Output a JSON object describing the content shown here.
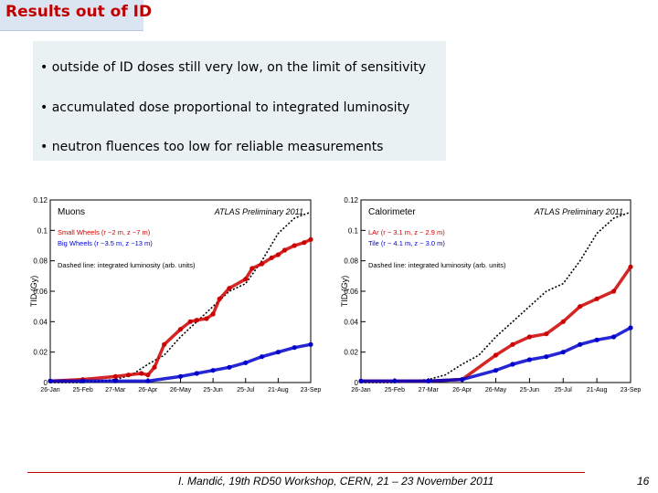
{
  "slide": {
    "title": "Results out of ID",
    "bullets": [
      "• outside of ID doses still very low, on the limit of sensitivity",
      "• accumulated dose proportional to integrated luminosity",
      "• neutron fluences too low for reliable measurements"
    ],
    "footer": "I. Mandić, 19th RD50 Workshop, CERN, 21 – 23 November 2011",
    "page_number": "16"
  },
  "chart_data": [
    {
      "type": "scatter",
      "title": "Muons",
      "subtitle": "ATLAS Preliminary  2011",
      "ylabel": "TID (Gy)",
      "ylim": [
        0,
        0.12
      ],
      "yticks": [
        "0",
        "0.02",
        "0.04",
        "0.06",
        "0.08",
        "0.1",
        "0.12"
      ],
      "xticks": [
        "26-Jan",
        "25-Feb",
        "27-Mar",
        "26-Apr",
        "26-May",
        "25-Jun",
        "25-Jul",
        "21-Aug",
        "23-Sep"
      ],
      "note": "Dashed line: integrated luminosity (arb. units)",
      "series": [
        {
          "name": "Small Wheels (r ~2 m, z ~7 m)",
          "color": "#cc0000",
          "x": [
            0,
            1,
            2,
            2.4,
            2.8,
            3,
            3.2,
            3.5,
            4,
            4.3,
            4.5,
            4.8,
            5,
            5.2,
            5.5,
            6,
            6.2,
            6.5,
            6.8,
            7,
            7.2,
            7.5,
            7.8,
            8
          ],
          "y": [
            0.001,
            0.002,
            0.004,
            0.005,
            0.006,
            0.005,
            0.01,
            0.025,
            0.035,
            0.04,
            0.041,
            0.042,
            0.045,
            0.055,
            0.062,
            0.068,
            0.075,
            0.078,
            0.082,
            0.084,
            0.087,
            0.09,
            0.092,
            0.094
          ]
        },
        {
          "name": "Big Wheels (r ~3.5 m, z ~13 m)",
          "color": "#0000cc",
          "x": [
            0,
            1,
            2,
            3,
            4,
            4.5,
            5,
            5.5,
            6,
            6.5,
            7,
            7.5,
            8
          ],
          "y": [
            0.001,
            0.001,
            0.001,
            0.001,
            0.004,
            0.006,
            0.008,
            0.01,
            0.013,
            0.017,
            0.02,
            0.023,
            0.025
          ]
        },
        {
          "name": "Dashed line: integrated luminosity (arb. units)",
          "color": "#000000",
          "x": [
            0,
            1,
            2,
            2.5,
            3,
            3.5,
            4,
            4.5,
            5,
            5.5,
            6,
            6.5,
            7,
            7.5,
            8
          ],
          "y": [
            0,
            0,
            0.002,
            0.005,
            0.012,
            0.018,
            0.03,
            0.04,
            0.05,
            0.06,
            0.065,
            0.08,
            0.098,
            0.108,
            0.112
          ]
        }
      ]
    },
    {
      "type": "scatter",
      "title": "Calorimeter",
      "subtitle": "ATLAS Preliminary  2011",
      "ylabel": "TID (Gy)",
      "ylim": [
        0,
        0.12
      ],
      "yticks": [
        "0",
        "0.02",
        "0.04",
        "0.06",
        "0.08",
        "0.1",
        "0.12"
      ],
      "xticks": [
        "26-Jan",
        "25-Feb",
        "27-Mar",
        "26-Apr",
        "26-May",
        "25-Jun",
        "25-Jul",
        "21-Aug",
        "23-Sep"
      ],
      "note": "Dashed line: integrated luminosity (arb. units)",
      "series": [
        {
          "name": "LAr (r ~ 3.1 m, z ~ 2.9 m)",
          "color": "#cc0000",
          "x": [
            0,
            1,
            2,
            3,
            4,
            4.5,
            5,
            5.5,
            6,
            6.5,
            7,
            7.5,
            8
          ],
          "y": [
            0.001,
            0.001,
            0.001,
            0.002,
            0.018,
            0.025,
            0.03,
            0.032,
            0.04,
            0.05,
            0.055,
            0.06,
            0.076
          ]
        },
        {
          "name": "Tile (r ~ 4.1 m, z ~ 3.0 m)",
          "color": "#0000cc",
          "x": [
            0,
            1,
            2,
            3,
            4,
            4.5,
            5,
            5.5,
            6,
            6.5,
            7,
            7.5,
            8
          ],
          "y": [
            0.001,
            0.001,
            0.001,
            0.002,
            0.008,
            0.012,
            0.015,
            0.017,
            0.02,
            0.025,
            0.028,
            0.03,
            0.036
          ]
        },
        {
          "name": "Dashed line: integrated luminosity (arb. units)",
          "color": "#000000",
          "x": [
            0,
            1,
            2,
            2.5,
            3,
            3.5,
            4,
            4.5,
            5,
            5.5,
            6,
            6.5,
            7,
            7.5,
            8
          ],
          "y": [
            0,
            0,
            0.002,
            0.005,
            0.012,
            0.018,
            0.03,
            0.04,
            0.05,
            0.06,
            0.065,
            0.08,
            0.098,
            0.108,
            0.112
          ]
        }
      ]
    }
  ]
}
